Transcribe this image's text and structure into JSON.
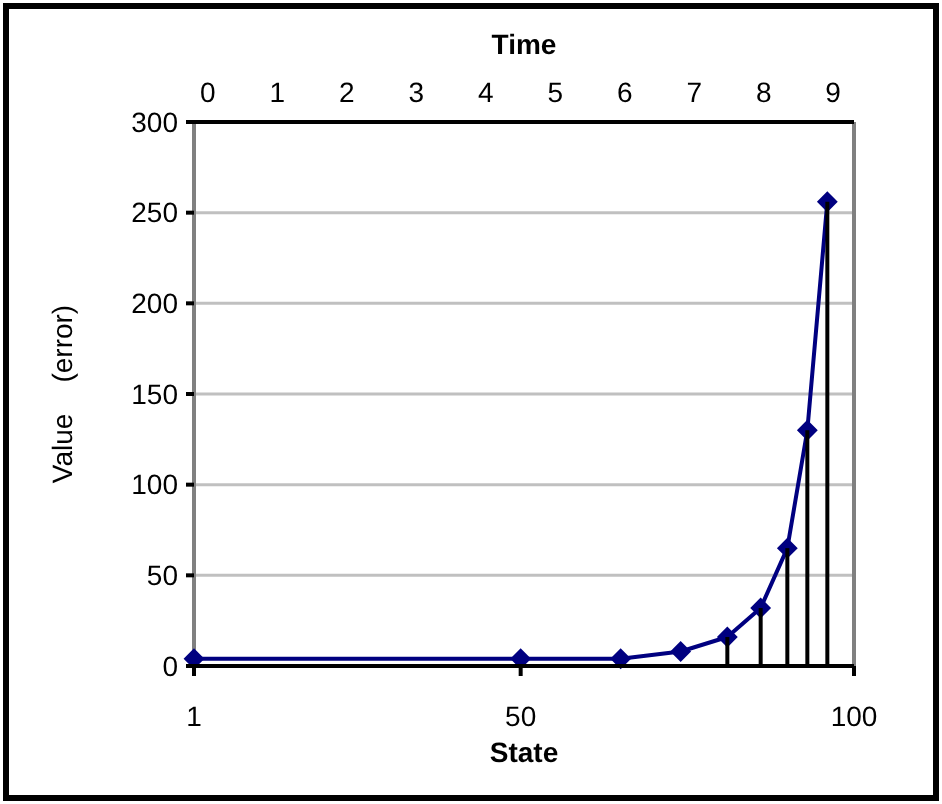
{
  "chart_data": {
    "type": "line",
    "xlabel": "State",
    "ylabel": "Value    (error)",
    "x2label": "Time",
    "x": [
      1,
      50,
      65,
      74,
      81,
      86,
      90,
      93,
      96
    ],
    "series": [
      {
        "color": "#000080",
        "values": [
          4,
          4,
          4,
          8,
          16,
          32,
          65,
          130,
          256
        ],
        "errors": [
          null,
          null,
          null,
          null,
          [
            0,
            16
          ],
          [
            0,
            32
          ],
          [
            0,
            65
          ],
          [
            0,
            130
          ],
          [
            0,
            256
          ]
        ]
      }
    ],
    "xlim": [
      1,
      100
    ],
    "xticks": [
      1,
      50,
      100
    ],
    "x2lim": [
      -0.2,
      9.3
    ],
    "x2ticks": [
      0,
      1,
      2,
      3,
      4,
      5,
      6,
      7,
      8,
      9
    ],
    "ylim": [
      0,
      300
    ],
    "yticks": [
      0,
      50,
      100,
      150,
      200,
      250,
      300
    ],
    "grid": "y",
    "marker": "diamond",
    "line_style": "solid"
  }
}
